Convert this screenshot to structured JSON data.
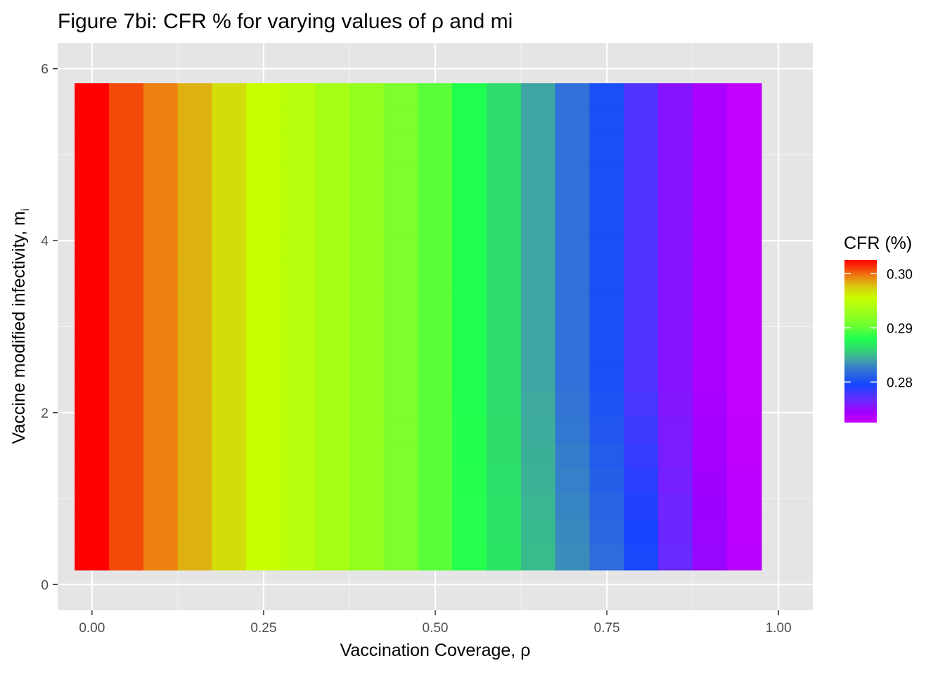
{
  "chart_data": {
    "type": "heatmap",
    "title": "Figure 7bi: CFR % for varying values of ρ and mi",
    "xlabel": "Vaccination Coverage,  ρ",
    "ylabel_main": "Vaccine modified infectivity, m",
    "ylabel_sub": "i",
    "xlim": [
      -0.05,
      1.05
    ],
    "ylim": [
      -0.3,
      6.3
    ],
    "x_ticks": [
      {
        "value": 0,
        "label": "0.00"
      },
      {
        "value": 0.25,
        "label": "0.25"
      },
      {
        "value": 0.5,
        "label": "0.50"
      },
      {
        "value": 0.75,
        "label": "0.75"
      },
      {
        "value": 1,
        "label": "1.00"
      }
    ],
    "y_ticks": [
      {
        "value": 0,
        "label": "0"
      },
      {
        "value": 2,
        "label": "2"
      },
      {
        "value": 4,
        "label": "4"
      },
      {
        "value": 6,
        "label": "6"
      }
    ],
    "x": [
      0,
      0.05,
      0.1,
      0.15,
      0.2,
      0.25,
      0.3,
      0.35,
      0.4,
      0.45,
      0.5,
      0.55,
      0.6,
      0.65,
      0.7,
      0.75,
      0.8,
      0.85,
      0.9,
      0.95
    ],
    "y_range": [
      0.17,
      5.83
    ],
    "rows": 19,
    "cfr_by_coverage": [
      0.3025,
      0.3008,
      0.2995,
      0.2982,
      0.2968,
      0.2955,
      0.2945,
      0.2935,
      0.2925,
      0.2912,
      0.2898,
      0.288,
      0.2862,
      0.2842,
      0.282,
      0.28,
      0.2775,
      0.2755,
      0.274,
      0.2728
    ],
    "low_mi_offsets": {
      "rows": 7,
      "start_column": 11,
      "offsets": [
        0.0002,
        0.0004,
        0.0008,
        0.0012,
        0.0018,
        0.0022,
        0.0012,
        0.0008,
        0.0004
      ]
    },
    "legend": {
      "title": "CFR (%)",
      "range": [
        0.2725,
        0.3025
      ],
      "ticks": [
        {
          "value": 0.3,
          "label": "0.30"
        },
        {
          "value": 0.29,
          "label": "0.29"
        },
        {
          "value": 0.28,
          "label": "0.28"
        }
      ],
      "colors": [
        {
          "v": 0.2725,
          "c": "#c800ff"
        },
        {
          "v": 0.2745,
          "c": "#a000ff"
        },
        {
          "v": 0.277,
          "c": "#6030ff"
        },
        {
          "v": 0.2795,
          "c": "#1545ff"
        },
        {
          "v": 0.282,
          "c": "#3070d8"
        },
        {
          "v": 0.284,
          "c": "#40a0a8"
        },
        {
          "v": 0.286,
          "c": "#30d870"
        },
        {
          "v": 0.288,
          "c": "#20ff50"
        },
        {
          "v": 0.2905,
          "c": "#70ff30"
        },
        {
          "v": 0.2935,
          "c": "#a5ff15"
        },
        {
          "v": 0.2955,
          "c": "#c8ff00"
        },
        {
          "v": 0.2975,
          "c": "#d8cc10"
        },
        {
          "v": 0.2995,
          "c": "#ec8010"
        },
        {
          "v": 0.3025,
          "c": "#ff0000"
        }
      ]
    },
    "panel_background": "#e5e5e5",
    "grid": true
  }
}
